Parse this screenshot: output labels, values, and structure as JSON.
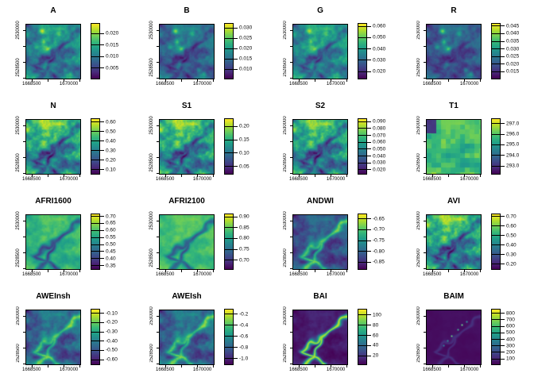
{
  "figure": {
    "background": "#ffffff",
    "palette": [
      "#440154",
      "#482878",
      "#3e4989",
      "#31688e",
      "#26828e",
      "#1f9e89",
      "#35b779",
      "#6ece58",
      "#b5de2b",
      "#fde725"
    ]
  },
  "chart_data": {
    "type": "heatmap",
    "layout": "4x4-grid",
    "colormap": "viridis",
    "x_tick_labels": [
      "1668500",
      "1670000"
    ],
    "y_tick_labels": [
      "2530000",
      "2528500"
    ],
    "panels": [
      {
        "title": "A",
        "legend_labels": [
          "0.020",
          "0.015",
          "0.010",
          "0.005"
        ],
        "legend_values": [
          0.02,
          0.015,
          0.01,
          0.005
        ],
        "vmin": 0.0,
        "vmax": 0.0245,
        "pattern": {
          "base": 0.45,
          "amp": 0.3,
          "vein": "dark",
          "vein_strength": 0.22,
          "vein_width": 2.2,
          "spots": 0.38,
          "gradient_tl": 0,
          "blocky": false,
          "patch_tl": false,
          "dots": false
        }
      },
      {
        "title": "B",
        "legend_labels": [
          "0.030",
          "0.025",
          "0.020",
          "0.015",
          "0.010"
        ],
        "legend_values": [
          0.03,
          0.025,
          0.02,
          0.015,
          0.01
        ],
        "vmin": 0.005,
        "vmax": 0.0325,
        "pattern": {
          "base": 0.34,
          "amp": 0.24,
          "vein": "dark",
          "vein_strength": 0.18,
          "vein_width": 2.2,
          "spots": 0.42,
          "gradient_tl": 0,
          "blocky": false,
          "patch_tl": false,
          "dots": false
        }
      },
      {
        "title": "G",
        "legend_labels": [
          "0.060",
          "0.050",
          "0.040",
          "0.030",
          "0.020"
        ],
        "legend_values": [
          0.06,
          0.05,
          0.04,
          0.03,
          0.02
        ],
        "vmin": 0.013,
        "vmax": 0.063,
        "pattern": {
          "base": 0.48,
          "amp": 0.3,
          "vein": "dark",
          "vein_strength": 0.22,
          "vein_width": 2.2,
          "spots": 0.3,
          "gradient_tl": 0,
          "blocky": false,
          "patch_tl": false,
          "dots": false
        }
      },
      {
        "title": "R",
        "legend_labels": [
          "0.045",
          "0.040",
          "0.035",
          "0.030",
          "0.025",
          "0.020",
          "0.015"
        ],
        "legend_values": [
          0.045,
          0.04,
          0.035,
          0.03,
          0.025,
          0.02,
          0.015
        ],
        "vmin": 0.01,
        "vmax": 0.047,
        "pattern": {
          "base": 0.28,
          "amp": 0.22,
          "vein": "dark",
          "vein_strength": 0.1,
          "vein_width": 2.2,
          "spots": 0.45,
          "gradient_tl": 0,
          "blocky": false,
          "patch_tl": false,
          "dots": false
        }
      },
      {
        "title": "N",
        "legend_labels": [
          "0.60",
          "0.50",
          "0.40",
          "0.30",
          "0.20",
          "0.10"
        ],
        "legend_values": [
          0.6,
          0.5,
          0.4,
          0.3,
          0.2,
          0.1
        ],
        "vmin": 0.05,
        "vmax": 0.64,
        "pattern": {
          "base": 0.52,
          "amp": 0.4,
          "vein": "dark",
          "vein_strength": 0.3,
          "vein_width": 2.2,
          "spots": 0,
          "gradient_tl": 0.25,
          "blocky": false,
          "patch_tl": false,
          "dots": false
        }
      },
      {
        "title": "S1",
        "legend_labels": [
          "0.20",
          "0.15",
          "0.10",
          "0.05"
        ],
        "legend_values": [
          0.2,
          0.15,
          0.1,
          0.05
        ],
        "vmin": 0.02,
        "vmax": 0.23,
        "pattern": {
          "base": 0.52,
          "amp": 0.4,
          "vein": "dark",
          "vein_strength": 0.28,
          "vein_width": 2.2,
          "spots": 0,
          "gradient_tl": 0.25,
          "blocky": false,
          "patch_tl": false,
          "dots": false
        }
      },
      {
        "title": "S2",
        "legend_labels": [
          "0.090",
          "0.080",
          "0.070",
          "0.060",
          "0.050",
          "0.040",
          "0.030",
          "0.020"
        ],
        "legend_values": [
          0.09,
          0.08,
          0.07,
          0.06,
          0.05,
          0.04,
          0.03,
          0.02
        ],
        "vmin": 0.013,
        "vmax": 0.095,
        "pattern": {
          "base": 0.5,
          "amp": 0.4,
          "vein": "dark",
          "vein_strength": 0.28,
          "vein_width": 2.2,
          "spots": 0,
          "gradient_tl": 0.22,
          "blocky": false,
          "patch_tl": false,
          "dots": false
        }
      },
      {
        "title": "T1",
        "legend_labels": [
          "297.0",
          "296.0",
          "295.0",
          "294.0",
          "293.0"
        ],
        "legend_values": [
          297.0,
          296.0,
          295.0,
          294.0,
          293.0
        ],
        "vmin": 292.2,
        "vmax": 297.5,
        "pattern": {
          "base": 0.68,
          "amp": 0.22,
          "vein": "none",
          "vein_strength": 0,
          "vein_width": 2.2,
          "spots": 0,
          "gradient_tl": 0,
          "blocky": true,
          "patch_tl": true,
          "dots": false
        }
      },
      {
        "title": "AFRI1600",
        "legend_labels": [
          "0.70",
          "0.65",
          "0.60",
          "0.55",
          "0.50",
          "0.45",
          "0.40",
          "0.35"
        ],
        "legend_values": [
          0.7,
          0.65,
          0.6,
          0.55,
          0.5,
          0.45,
          0.4,
          0.35
        ],
        "vmin": 0.32,
        "vmax": 0.72,
        "pattern": {
          "base": 0.66,
          "amp": 0.16,
          "vein": "dark",
          "vein_strength": 0.42,
          "vein_width": 2.2,
          "spots": 0,
          "gradient_tl": 0,
          "blocky": false,
          "patch_tl": false,
          "dots": false
        }
      },
      {
        "title": "AFRI2100",
        "legend_labels": [
          "0.90",
          "0.85",
          "0.80",
          "0.75",
          "0.70"
        ],
        "legend_values": [
          0.9,
          0.85,
          0.8,
          0.75,
          0.7
        ],
        "vmin": 0.655,
        "vmax": 0.915,
        "pattern": {
          "base": 0.7,
          "amp": 0.13,
          "vein": "dark",
          "vein_strength": 0.4,
          "vein_width": 2.2,
          "spots": 0,
          "gradient_tl": 0,
          "blocky": false,
          "patch_tl": false,
          "dots": false
        }
      },
      {
        "title": "ANDWI",
        "legend_labels": [
          "-0.65",
          "-0.70",
          "-0.75",
          "-0.80",
          "-0.85"
        ],
        "legend_values": [
          -0.65,
          -0.7,
          -0.75,
          -0.8,
          -0.85
        ],
        "vmin": -0.885,
        "vmax": -0.625,
        "pattern": {
          "base": 0.26,
          "amp": 0.22,
          "vein": "bright",
          "vein_strength": 0.45,
          "vein_width": 2.2,
          "spots": 0,
          "gradient_tl": 0,
          "blocky": false,
          "patch_tl": false,
          "dots": false
        }
      },
      {
        "title": "AVI",
        "legend_labels": [
          "0.70",
          "0.60",
          "0.50",
          "0.40",
          "0.30",
          "0.20"
        ],
        "legend_values": [
          0.7,
          0.6,
          0.5,
          0.4,
          0.3,
          0.2
        ],
        "vmin": 0.14,
        "vmax": 0.73,
        "pattern": {
          "base": 0.52,
          "amp": 0.4,
          "vein": "dark",
          "vein_strength": 0.3,
          "vein_width": 2.2,
          "spots": 0,
          "gradient_tl": 0.25,
          "blocky": false,
          "patch_tl": false,
          "dots": false
        }
      },
      {
        "title": "AWEInsh",
        "legend_labels": [
          "-0.10",
          "-0.20",
          "-0.30",
          "-0.40",
          "-0.50",
          "-0.60"
        ],
        "legend_values": [
          -0.1,
          -0.2,
          -0.3,
          -0.4,
          -0.5,
          -0.6
        ],
        "vmin": -0.66,
        "vmax": -0.05,
        "pattern": {
          "base": 0.32,
          "amp": 0.26,
          "vein": "bright",
          "vein_strength": 0.4,
          "vein_width": 2.2,
          "spots": 0,
          "gradient_tl": 0,
          "blocky": false,
          "patch_tl": false,
          "dots": false
        }
      },
      {
        "title": "AWEIsh",
        "legend_labels": [
          "-0.2",
          "-0.4",
          "-0.6",
          "-0.8",
          "-1.0"
        ],
        "legend_values": [
          -0.2,
          -0.4,
          -0.6,
          -0.8,
          -1.0
        ],
        "vmin": -1.12,
        "vmax": -0.1,
        "pattern": {
          "base": 0.32,
          "amp": 0.26,
          "vein": "bright",
          "vein_strength": 0.4,
          "vein_width": 2.2,
          "spots": 0,
          "gradient_tl": 0,
          "blocky": false,
          "patch_tl": false,
          "dots": false
        }
      },
      {
        "title": "BAI",
        "legend_labels": [
          "100",
          "80",
          "60",
          "40",
          "20"
        ],
        "legend_values": [
          100,
          80,
          60,
          40,
          20
        ],
        "vmin": 2,
        "vmax": 112,
        "pattern": {
          "base": 0.07,
          "amp": 0.08,
          "vein": "bright",
          "vein_strength": 0.8,
          "vein_width": 1.7,
          "spots": 0,
          "gradient_tl": 0,
          "blocky": false,
          "patch_tl": false,
          "dots": false
        }
      },
      {
        "title": "BAIM",
        "legend_labels": [
          "800",
          "700",
          "600",
          "500",
          "400",
          "300",
          "200",
          "100"
        ],
        "legend_values": [
          800,
          700,
          600,
          500,
          400,
          300,
          200,
          100
        ],
        "vmin": 5,
        "vmax": 870,
        "pattern": {
          "base": 0.035,
          "amp": 0.02,
          "vein": "bright",
          "vein_strength": 0.1,
          "vein_width": 1.3,
          "spots": 0,
          "gradient_tl": 0,
          "blocky": false,
          "patch_tl": false,
          "dots": true
        }
      }
    ]
  }
}
